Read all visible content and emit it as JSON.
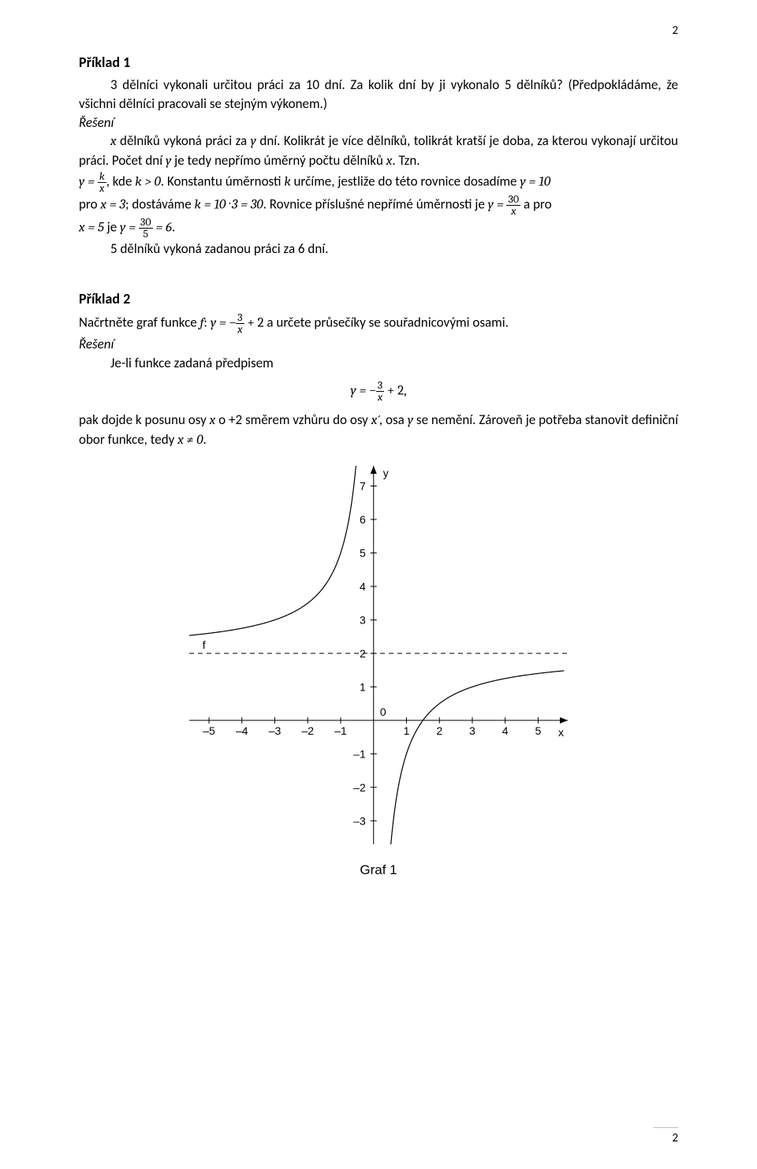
{
  "page_number_top": "2",
  "page_number_bottom": "2",
  "ex1": {
    "heading": "Příklad 1",
    "p1_a": "3 dělníci vykonali určitou práci za 10 dní. Za kolik dní by ji vykonalo 5 dělníků? (Předpokládáme, že všichni dělníci pracovali se stejným výkonem.)",
    "solution_label": "Řešení",
    "p2_lead": "x",
    "p2_mid1": " dělníků vykoná práci za ",
    "p2_y": "y",
    "p2_mid2": " dní. Kolikrát je více dělníků, tolikrát kratší je doba, za kterou vykonají určitou práci. Počet dní ",
    "p2_y2": "y",
    "p2_mid3": " je tedy nepřímo úměrný počtu dělníků ",
    "p2_x2": "x",
    "p2_tail": ". Tzn.",
    "frac1_n": "k",
    "frac1_d": "x",
    "p3_a": ", kde ",
    "p3_b": "k > 0",
    "p3_c": ". Konstantu úměrnosti ",
    "p3_k": "k",
    "p3_d": " určíme, jestliže do této rovnice dosadíme ",
    "p3_e": "y = 10",
    "p4_a": "pro ",
    "p4_b": "x = 3",
    "p4_c": "; dostáváme ",
    "p4_d": "k = 10 · 3 = 30",
    "p4_e": ". Rovnice příslušné nepřímé úměrnosti je ",
    "p4_f_pre": "y = ",
    "frac2_n": "30",
    "frac2_d": "x",
    "p4_g": " a pro",
    "p5_a": "x = 5",
    "p5_b": " je ",
    "p5_c_pre": "y = ",
    "frac3_n": "30",
    "frac3_d": "5",
    "p5_d": " = 6",
    "p5_e": ".",
    "answer": "5 dělníků vykoná zadanou práci za 6 dní."
  },
  "ex2": {
    "heading": "Příklad 2",
    "p1_a": "Načrtněte graf funkce ",
    "p1_f": "f",
    "p1_b": ": ",
    "p1_yeq": "y = −",
    "frac_a_n": "3",
    "frac_a_d": "x",
    "p1_plus": " + 2",
    "p1_c": " a určete průsečíky se souřadnicovými osami.",
    "solution_label": "Řešení",
    "p2": "Je-li funkce zadaná předpisem",
    "eq_pre": "y = −",
    "eq_frac_n": "3",
    "eq_frac_d": "x",
    "eq_plus": " + 2,",
    "p3_a": "pak dojde k posunu osy ",
    "p3_x": "x",
    "p3_b": " o +2 směrem vzhůru do osy ",
    "p3_xp": "x´",
    "p3_c": ", osa ",
    "p3_y": "y",
    "p3_d": " se nemění. Zároveň je potřeba stanovit definiční obor funkce, tedy ",
    "p3_e": "x ≠ 0",
    "p3_f": "."
  },
  "graph": {
    "caption": "Graf 1",
    "x_label": "x",
    "y_label": "y",
    "f_label": "f",
    "x_ticks": [
      -5,
      -4,
      -3,
      -2,
      -1,
      1,
      2,
      3,
      4,
      5
    ],
    "y_ticks_pos": [
      1,
      2,
      3,
      4,
      5,
      6,
      7
    ],
    "y_ticks_neg": [
      -1,
      -2,
      -3
    ],
    "zero_label": "0",
    "asymptote_y": 2,
    "stroke_color": "#000000",
    "bg_color": "#ffffff"
  }
}
